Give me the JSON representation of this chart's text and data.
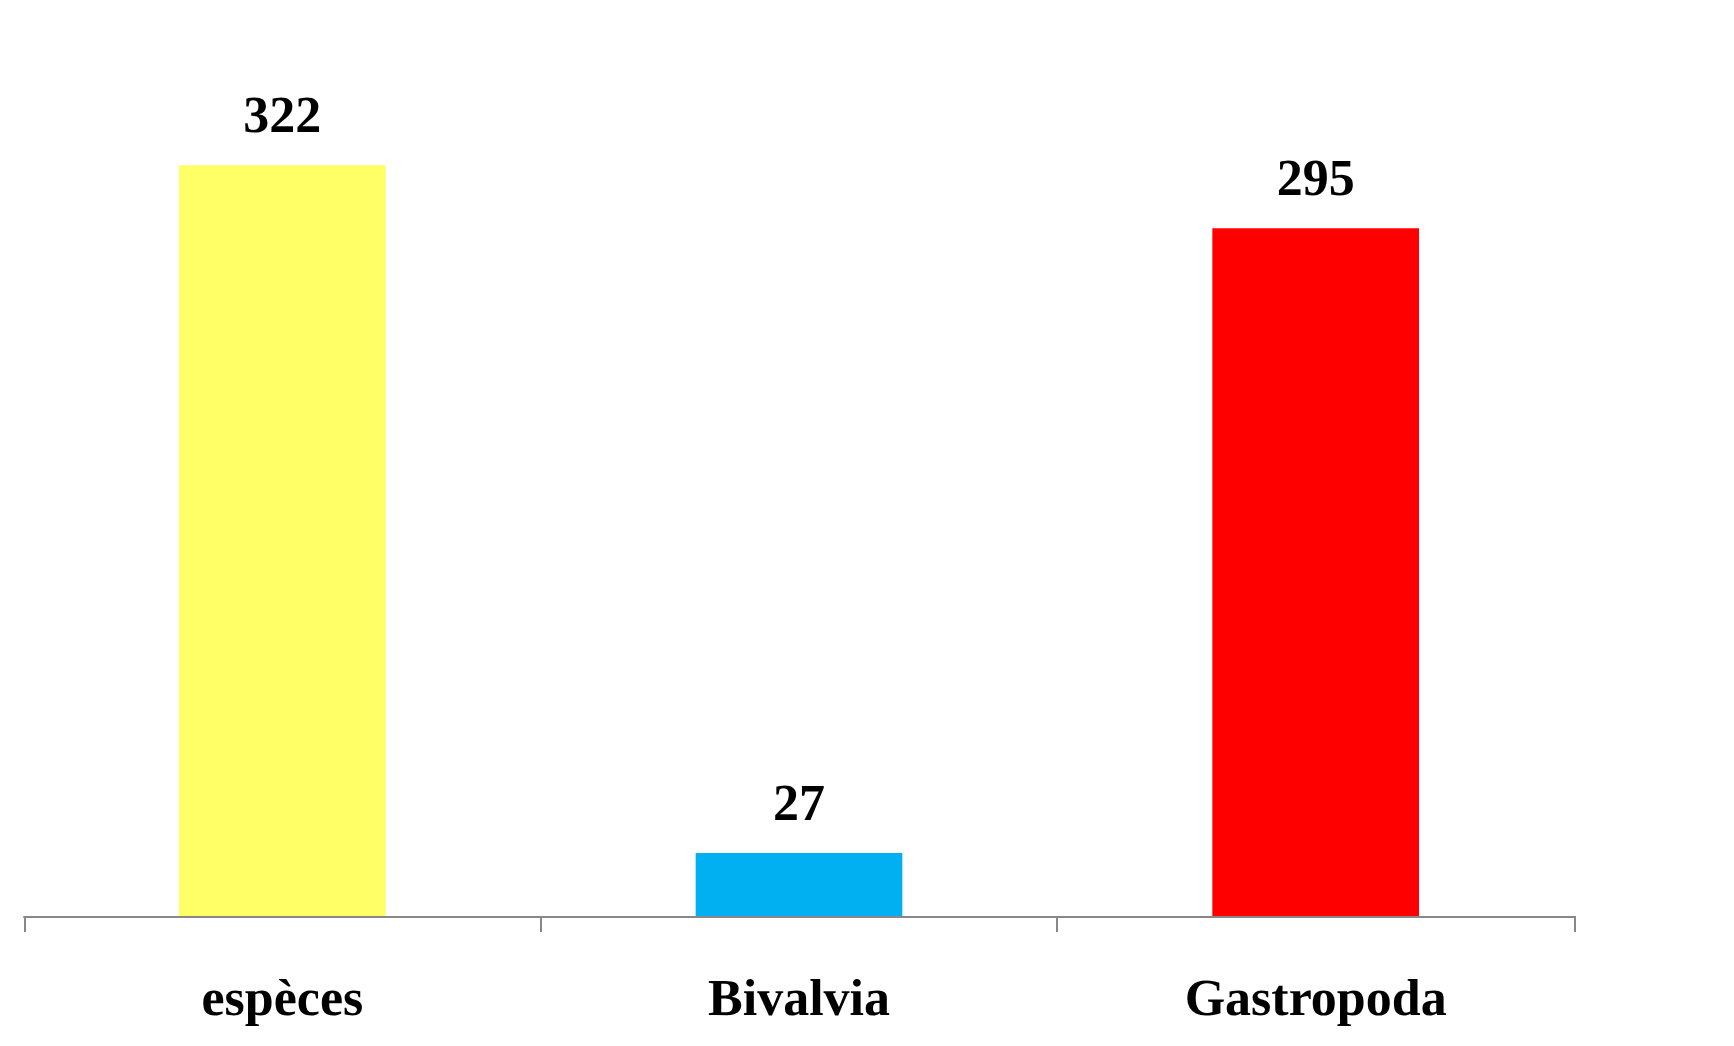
{
  "chart_data": {
    "type": "bar",
    "categories": [
      "espèces",
      "Bivalvia",
      "Gastropoda"
    ],
    "values": [
      322,
      27,
      295
    ],
    "colors": [
      "#ffff66",
      "#00b0f0",
      "#ff0000"
    ],
    "data_labels": true
  }
}
